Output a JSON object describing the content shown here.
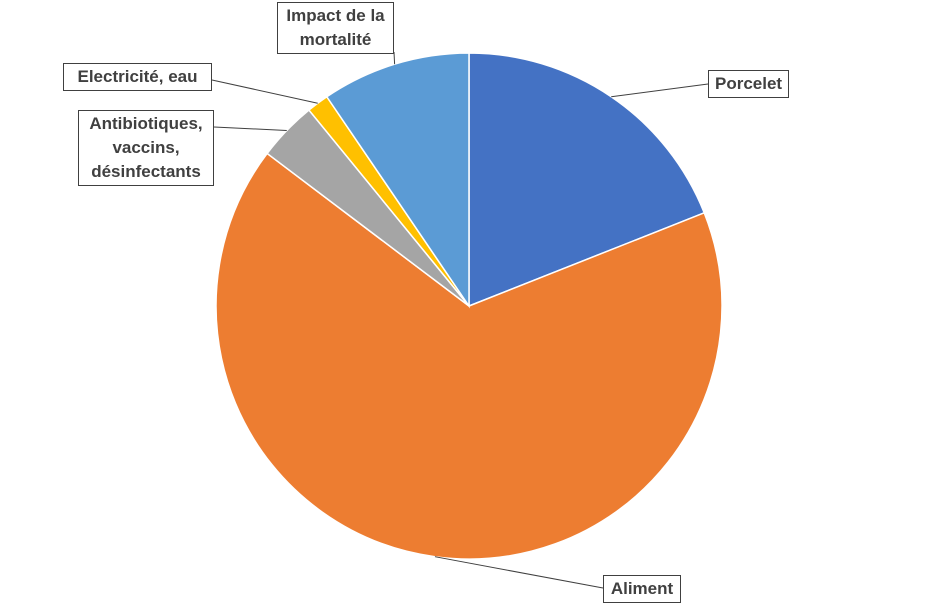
{
  "chart_data": {
    "type": "pie",
    "categories": [
      "Porcelet",
      "Aliment",
      "Antibiotiques, vaccins, désinfectants",
      "Electricité, eau",
      "Impact de la mortalité"
    ],
    "values": [
      19,
      66.3,
      3.8,
      1.4,
      9.5
    ],
    "colors": [
      "#4472c4",
      "#ed7d31",
      "#a5a5a5",
      "#ffc000",
      "#5b9bd5"
    ]
  }
}
